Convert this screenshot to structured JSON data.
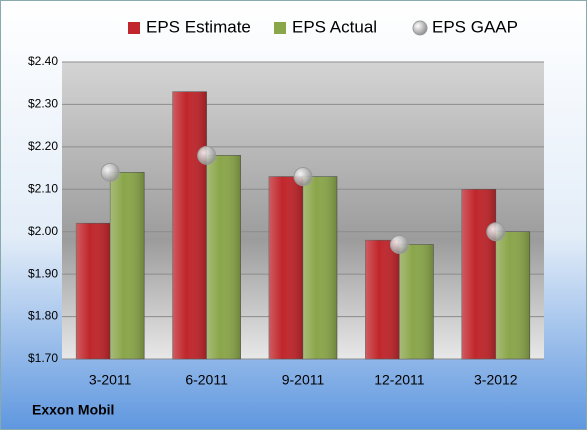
{
  "chart_data": {
    "type": "bar",
    "annotation": "Exxon Mobil",
    "categories": [
      "3-2011",
      "6-2011",
      "9-2011",
      "12-2011",
      "3-2012"
    ],
    "series": [
      {
        "name": "EPS Estimate",
        "color": "#c0262b",
        "values": [
          2.02,
          2.33,
          2.13,
          1.98,
          2.1
        ]
      },
      {
        "name": "EPS Actual",
        "color": "#8aa64a",
        "values": [
          2.14,
          2.18,
          2.13,
          1.97,
          2.0
        ]
      },
      {
        "name": "EPS GAAP",
        "color": "#bcbcbc",
        "type": "scatter",
        "values": [
          2.14,
          2.18,
          2.13,
          1.97,
          2.0
        ]
      }
    ],
    "ylim": [
      1.7,
      2.4
    ],
    "yticks": [
      {
        "value": 1.7,
        "label": "$1.70"
      },
      {
        "value": 1.8,
        "label": "$1.80"
      },
      {
        "value": 1.9,
        "label": "$1.90"
      },
      {
        "value": 2.0,
        "label": "$2.00"
      },
      {
        "value": 2.1,
        "label": "$2.10"
      },
      {
        "value": 2.2,
        "label": "$2.20"
      },
      {
        "value": 2.3,
        "label": "$2.30"
      },
      {
        "value": 2.4,
        "label": "$2.40"
      }
    ],
    "grid": true,
    "legend": "top"
  }
}
